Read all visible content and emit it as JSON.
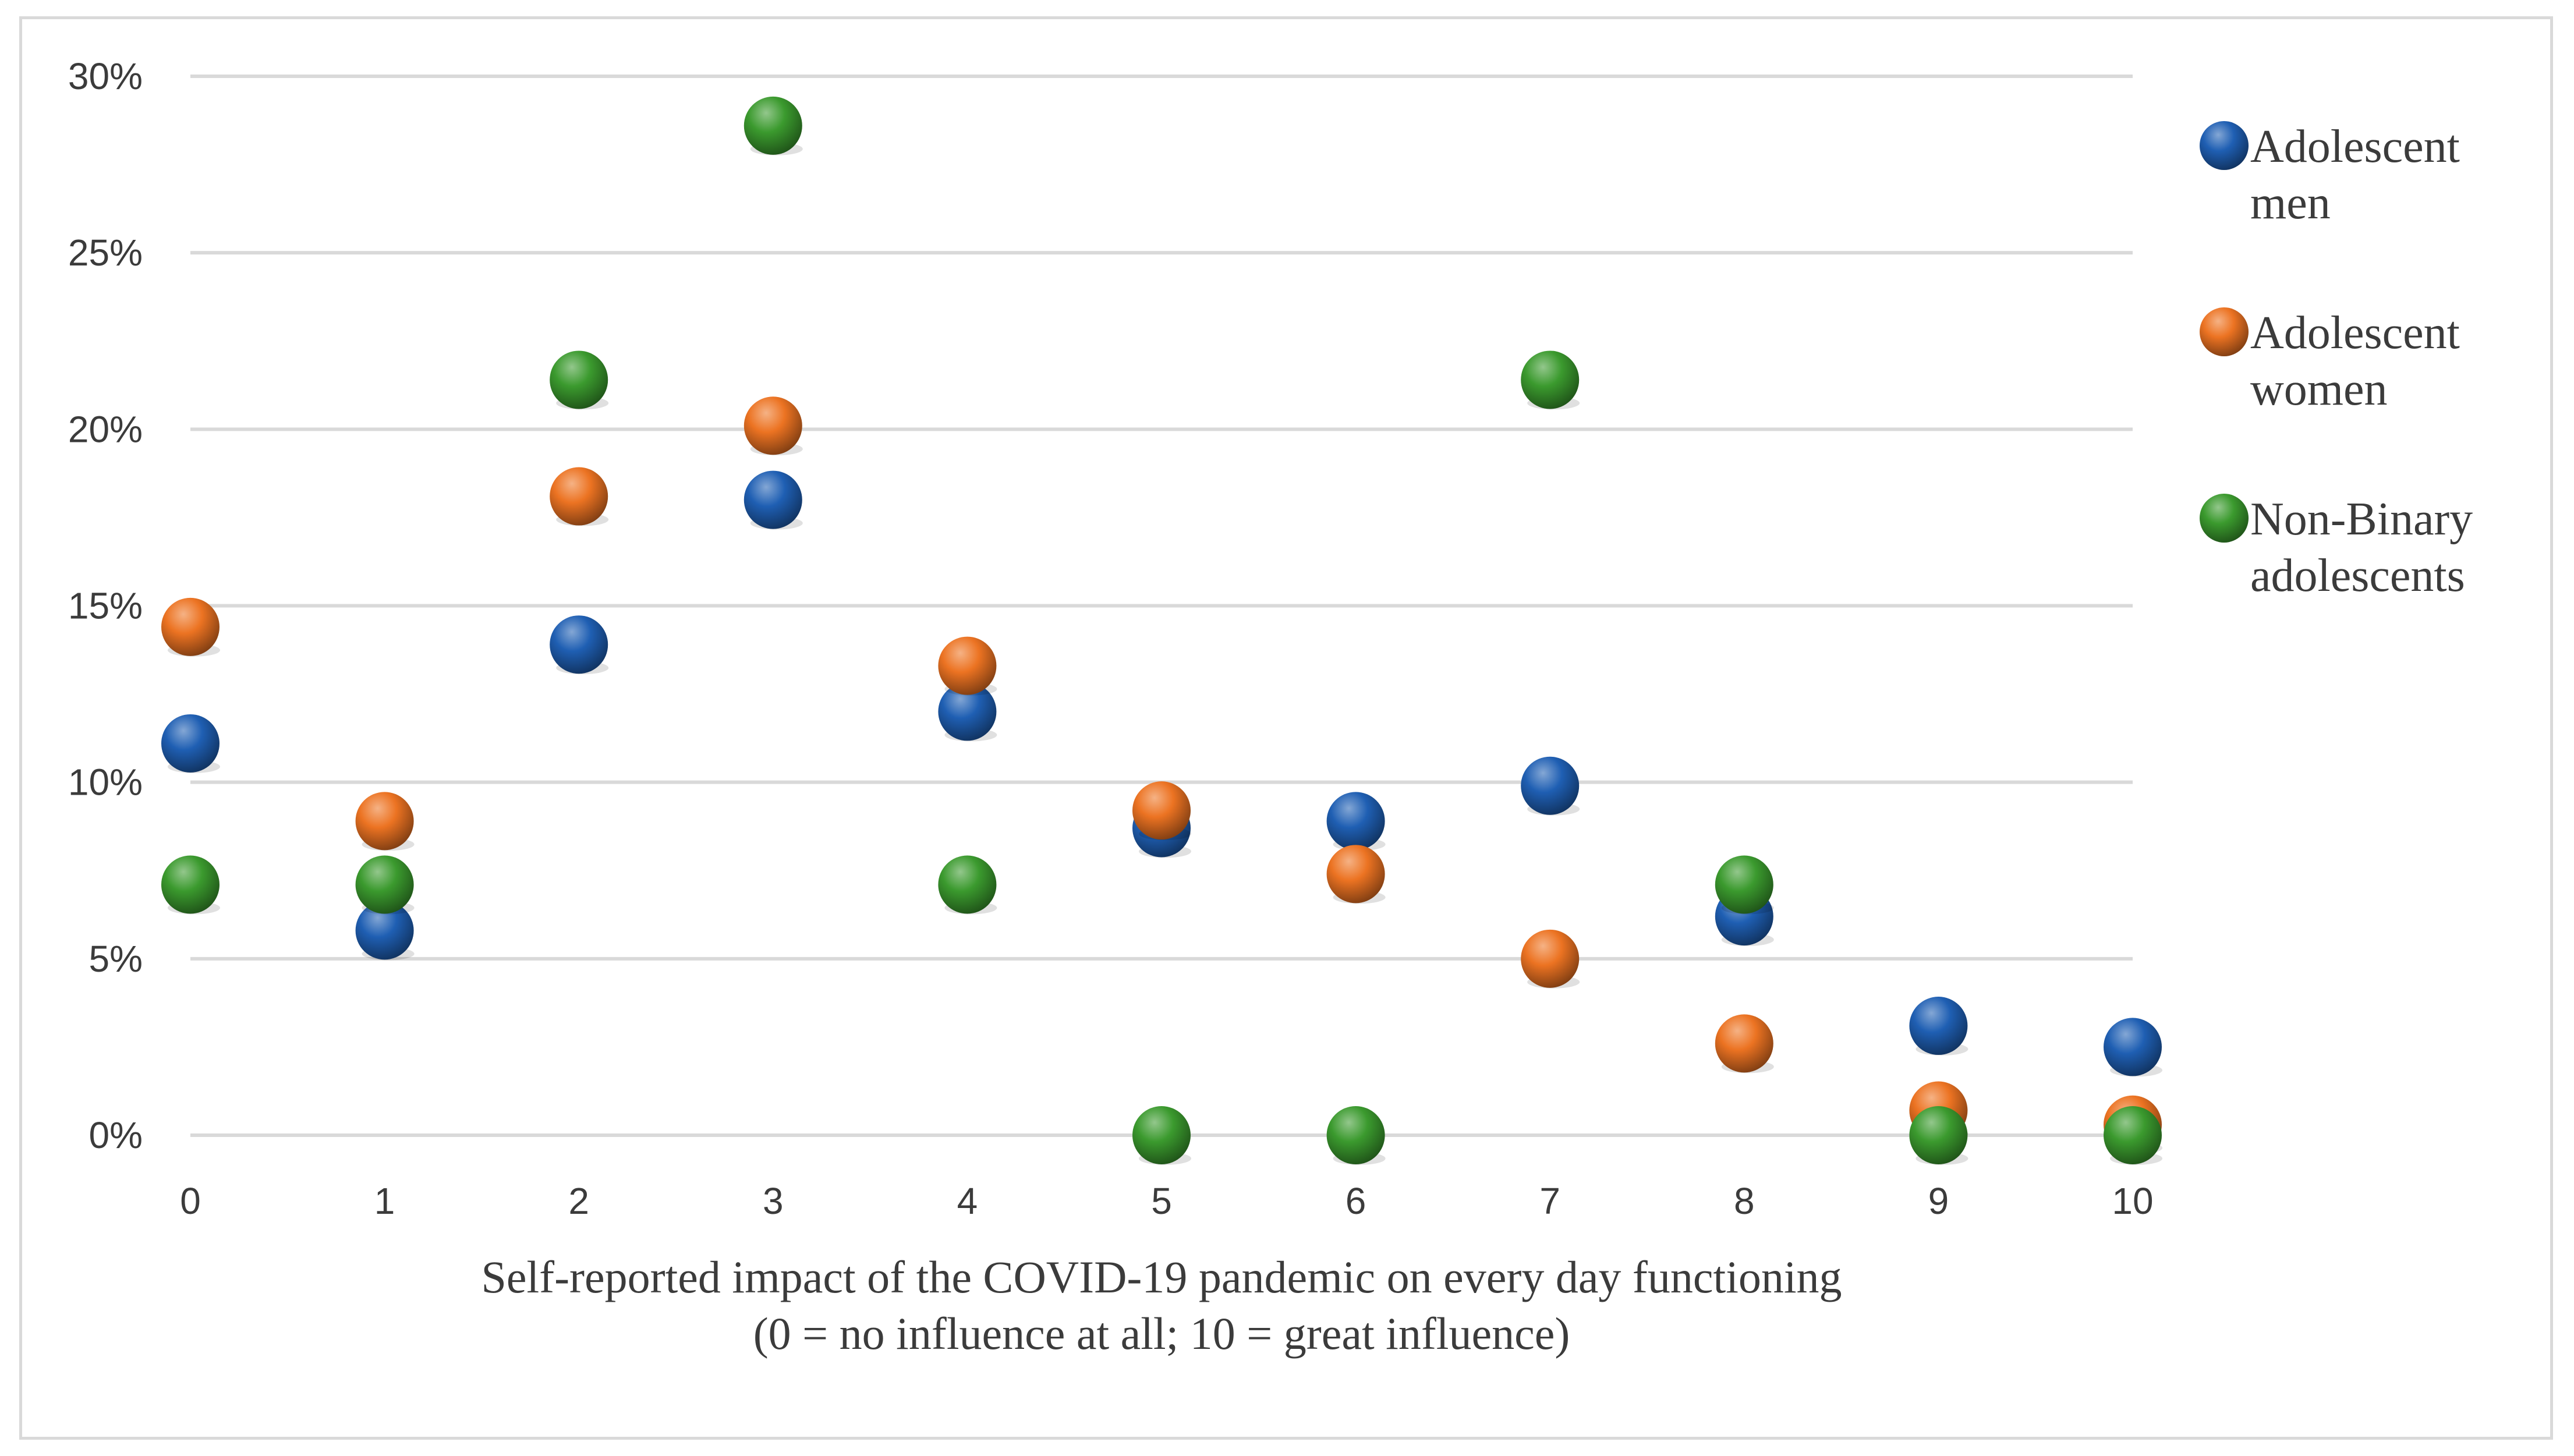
{
  "chart_data": {
    "type": "scatter",
    "title": "",
    "xlabel": "Self-reported impact of the COVID-19 pandemic on every day functioning",
    "xlabel_line2": "(0 = no influence at all; 10 = great influence)",
    "ylabel": "",
    "x": [
      0,
      1,
      2,
      3,
      4,
      5,
      6,
      7,
      8,
      9,
      10
    ],
    "x_tick_labels": [
      "0",
      "1",
      "2",
      "3",
      "4",
      "5",
      "6",
      "7",
      "8",
      "9",
      "10"
    ],
    "y_tick_values": [
      0,
      5,
      10,
      15,
      20,
      25,
      30
    ],
    "y_tick_labels": [
      "0%",
      "5%",
      "10%",
      "15%",
      "20%",
      "25%",
      "30%"
    ],
    "xlim": [
      0,
      10
    ],
    "ylim": [
      0,
      30
    ],
    "grid": true,
    "legend_position": "right",
    "series": [
      {
        "name": "Adolescent men",
        "legend_lines": [
          "Adolescent",
          "men"
        ],
        "color": "#1f5fb3",
        "values": [
          11.1,
          5.8,
          13.9,
          18.0,
          12.0,
          8.7,
          8.9,
          9.9,
          6.2,
          3.1,
          2.5
        ]
      },
      {
        "name": "Adolescent women",
        "legend_lines": [
          "Adolescent",
          "women"
        ],
        "color": "#ec7322",
        "values": [
          14.4,
          8.9,
          18.1,
          20.1,
          13.3,
          9.2,
          7.4,
          5.0,
          2.6,
          0.7,
          0.3
        ]
      },
      {
        "name": "Non-Binary adolescents",
        "legend_lines": [
          "Non-Binary",
          "adolescents"
        ],
        "color": "#3b9a2e",
        "values": [
          7.1,
          7.1,
          21.4,
          28.6,
          7.1,
          0.0,
          0.0,
          21.4,
          7.1,
          0.0,
          0.0
        ]
      }
    ]
  }
}
